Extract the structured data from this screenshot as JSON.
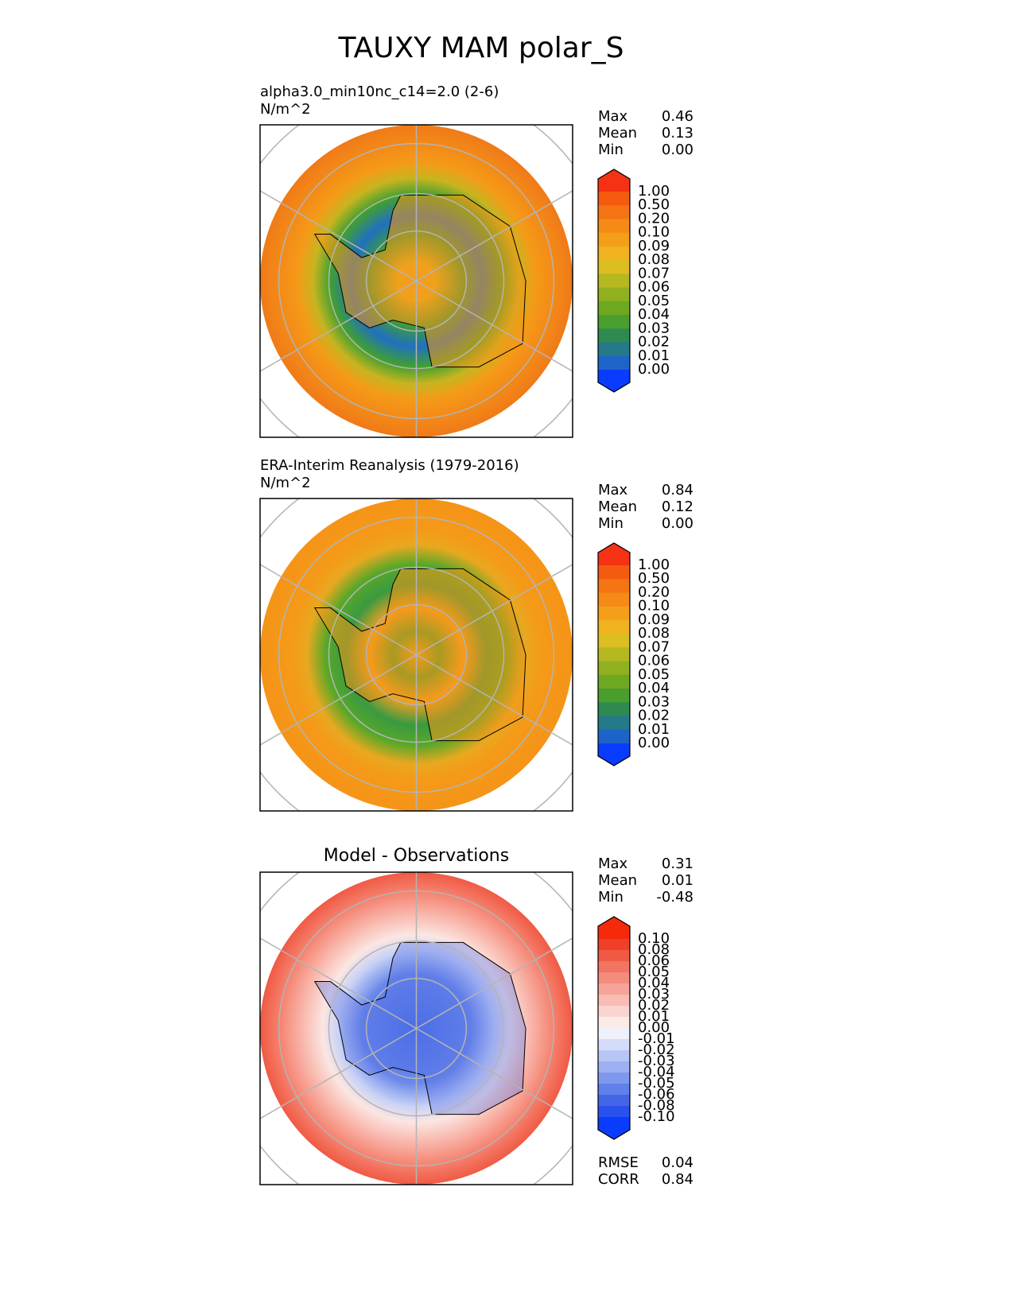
{
  "title": "TAUXY MAM polar_S",
  "panels": [
    {
      "title": "alpha3.0_min10nc_c14=2.0 (2-6)",
      "units": "N/m^2",
      "stats": [
        {
          "label": "Max",
          "value": "0.46"
        },
        {
          "label": "Mean",
          "value": "0.13"
        },
        {
          "label": "Min",
          "value": "0.00"
        }
      ],
      "colorbar": {
        "labels": [
          "1.00",
          "0.50",
          "0.20",
          "0.10",
          "0.09",
          "0.08",
          "0.07",
          "0.06",
          "0.05",
          "0.04",
          "0.03",
          "0.02",
          "0.01",
          "0.00"
        ],
        "colors": [
          "#f53214",
          "#f55a10",
          "#f57414",
          "#f58a16",
          "#f59e1a",
          "#f0b21e",
          "#dcbe20",
          "#b6b820",
          "#90b020",
          "#6ea820",
          "#4a9e2e",
          "#2e8a50",
          "#247a88",
          "#1e64c8",
          "#0a3cff"
        ]
      }
    },
    {
      "title": "ERA-Interim Reanalysis (1979-2016)",
      "units": "N/m^2",
      "stats": [
        {
          "label": "Max",
          "value": "0.84"
        },
        {
          "label": "Mean",
          "value": "0.12"
        },
        {
          "label": "Min",
          "value": "0.00"
        }
      ],
      "colorbar": {
        "labels": [
          "1.00",
          "0.50",
          "0.20",
          "0.10",
          "0.09",
          "0.08",
          "0.07",
          "0.06",
          "0.05",
          "0.04",
          "0.03",
          "0.02",
          "0.01",
          "0.00"
        ],
        "colors": [
          "#f53214",
          "#f55a10",
          "#f57414",
          "#f58a16",
          "#f59e1a",
          "#f0b21e",
          "#dcbe20",
          "#b6b820",
          "#90b020",
          "#6ea820",
          "#4a9e2e",
          "#2e8a50",
          "#247a88",
          "#1e64c8",
          "#0a3cff"
        ]
      }
    },
    {
      "title": "Model - Observations",
      "stats": [
        {
          "label": "Max",
          "value": "0.31"
        },
        {
          "label": "Mean",
          "value": "0.01"
        },
        {
          "label": "Min",
          "value": "-0.48"
        }
      ],
      "colorbar": {
        "labels": [
          "0.10",
          "0.08",
          "0.06",
          "0.05",
          "0.04",
          "0.03",
          "0.02",
          "0.01",
          "0.00",
          "-0.01",
          "-0.02",
          "-0.03",
          "-0.04",
          "-0.05",
          "-0.06",
          "-0.08",
          "-0.10"
        ],
        "colors": [
          "#f52a0a",
          "#f0402a",
          "#f05a44",
          "#f27462",
          "#f48c7e",
          "#f6a498",
          "#f8bcb2",
          "#fad4ce",
          "#fceae6",
          "#eef0fc",
          "#d4dcfa",
          "#b8c6f6",
          "#9cb0f2",
          "#7e98ee",
          "#6080ea",
          "#4266e6",
          "#2a50ee",
          "#0a3cff"
        ]
      },
      "metrics": [
        {
          "label": "RMSE",
          "value": "0.04"
        },
        {
          "label": "CORR",
          "value": "0.84"
        }
      ]
    }
  ]
}
